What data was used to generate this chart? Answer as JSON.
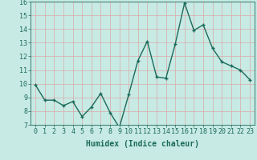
{
  "x": [
    0,
    1,
    2,
    3,
    4,
    5,
    6,
    7,
    8,
    9,
    10,
    11,
    12,
    13,
    14,
    15,
    16,
    17,
    18,
    19,
    20,
    21,
    22,
    23
  ],
  "y": [
    9.9,
    8.8,
    8.8,
    8.4,
    8.7,
    7.6,
    8.3,
    9.3,
    7.9,
    6.8,
    9.2,
    11.7,
    13.1,
    10.5,
    10.4,
    12.9,
    15.9,
    13.9,
    14.3,
    12.6,
    11.6,
    11.3,
    11.0,
    10.3
  ],
  "line_color": "#1a6b5a",
  "marker_color": "#1a6b5a",
  "bg_color": "#c8eae4",
  "grid_color": "#d8a8a8",
  "xlabel": "Humidex (Indice chaleur)",
  "ylim": [
    7,
    16
  ],
  "xlim_min": -0.5,
  "xlim_max": 23.5,
  "yticks": [
    7,
    8,
    9,
    10,
    11,
    12,
    13,
    14,
    15,
    16
  ],
  "xticks": [
    0,
    1,
    2,
    3,
    4,
    5,
    6,
    7,
    8,
    9,
    10,
    11,
    12,
    13,
    14,
    15,
    16,
    17,
    18,
    19,
    20,
    21,
    22,
    23
  ],
  "xlabel_fontsize": 7,
  "tick_fontsize": 6,
  "line_width": 1.0,
  "marker_size": 2.5
}
